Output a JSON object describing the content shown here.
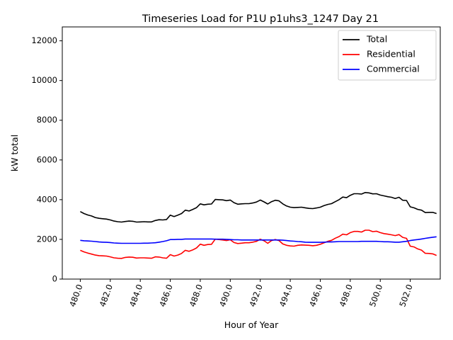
{
  "chart_data": {
    "type": "line",
    "title": "Timeseries Load for P1U p1uhs3_1247  Day 21",
    "xlabel": "Hour of Year",
    "ylabel": "kW total",
    "xlim": [
      478.8,
      504.0
    ],
    "ylim": [
      0,
      12700
    ],
    "grid": false,
    "legend_position": "top-right",
    "x_ticks": [
      480,
      482,
      484,
      486,
      488,
      490,
      492,
      494,
      496,
      498,
      500,
      502
    ],
    "x_tick_labels": [
      "480.0",
      "482.0",
      "484.0",
      "486.0",
      "488.0",
      "490.0",
      "492.0",
      "494.0",
      "496.0",
      "498.0",
      "500.0",
      "502.0"
    ],
    "y_ticks": [
      0,
      2000,
      4000,
      6000,
      8000,
      10000,
      12000
    ],
    "y_tick_labels": [
      "0",
      "2000",
      "4000",
      "6000",
      "8000",
      "10000",
      "12000"
    ],
    "x": [
      480.0,
      480.25,
      480.5,
      480.75,
      481.0,
      481.25,
      481.5,
      481.75,
      482.0,
      482.25,
      482.5,
      482.75,
      483.0,
      483.25,
      483.5,
      483.75,
      484.0,
      484.25,
      484.5,
      484.75,
      485.0,
      485.25,
      485.5,
      485.75,
      486.0,
      486.25,
      486.5,
      486.75,
      487.0,
      487.25,
      487.5,
      487.75,
      488.0,
      488.25,
      488.5,
      488.75,
      489.0,
      489.25,
      489.5,
      489.75,
      490.0,
      490.25,
      490.5,
      490.75,
      491.0,
      491.25,
      491.5,
      491.75,
      492.0,
      492.25,
      492.5,
      492.75,
      493.0,
      493.25,
      493.5,
      493.75,
      494.0,
      494.25,
      494.5,
      494.75,
      495.0,
      495.25,
      495.5,
      495.75,
      496.0,
      496.25,
      496.5,
      496.75,
      497.0,
      497.25,
      497.5,
      497.75,
      498.0,
      498.25,
      498.5,
      498.75,
      499.0,
      499.25,
      499.5,
      499.75,
      500.0,
      500.25,
      500.5,
      500.75,
      501.0,
      501.25,
      501.5,
      501.75,
      502.0,
      502.25,
      502.5,
      502.75,
      503.0,
      503.25,
      503.5,
      503.75
    ],
    "series": [
      {
        "name": "Total",
        "color": "#000000",
        "values": [
          3400,
          3300,
          3230,
          3180,
          3100,
          3060,
          3040,
          3020,
          2980,
          2920,
          2890,
          2870,
          2900,
          2920,
          2910,
          2870,
          2880,
          2890,
          2880,
          2880,
          2950,
          2990,
          2980,
          3000,
          3220,
          3150,
          3220,
          3300,
          3470,
          3430,
          3510,
          3600,
          3790,
          3740,
          3770,
          3780,
          4010,
          4000,
          3990,
          3950,
          3980,
          3850,
          3770,
          3790,
          3800,
          3800,
          3830,
          3880,
          3980,
          3890,
          3780,
          3900,
          3970,
          3940,
          3790,
          3680,
          3620,
          3600,
          3610,
          3620,
          3590,
          3560,
          3550,
          3580,
          3620,
          3700,
          3760,
          3800,
          3900,
          4000,
          4130,
          4100,
          4220,
          4300,
          4300,
          4280,
          4360,
          4340,
          4290,
          4300,
          4230,
          4190,
          4150,
          4120,
          4060,
          4120,
          3970,
          3960,
          3640,
          3590,
          3510,
          3470,
          3350,
          3360,
          3360,
          3300
        ]
      },
      {
        "name": "Residential",
        "color": "#ff0000",
        "values": [
          1450,
          1370,
          1310,
          1260,
          1210,
          1180,
          1170,
          1160,
          1120,
          1070,
          1050,
          1040,
          1090,
          1110,
          1100,
          1060,
          1070,
          1070,
          1060,
          1050,
          1120,
          1110,
          1070,
          1050,
          1230,
          1160,
          1210,
          1290,
          1450,
          1400,
          1470,
          1570,
          1760,
          1700,
          1740,
          1750,
          2010,
          1990,
          1970,
          1940,
          1980,
          1840,
          1790,
          1810,
          1830,
          1830,
          1860,
          1900,
          2010,
          1930,
          1800,
          1940,
          1990,
          1940,
          1770,
          1700,
          1670,
          1660,
          1700,
          1720,
          1710,
          1700,
          1680,
          1700,
          1750,
          1830,
          1900,
          1950,
          2060,
          2140,
          2260,
          2230,
          2340,
          2400,
          2400,
          2370,
          2460,
          2460,
          2390,
          2410,
          2340,
          2290,
          2260,
          2230,
          2190,
          2240,
          2100,
          2050,
          1660,
          1620,
          1520,
          1460,
          1300,
          1290,
          1270,
          1190
        ]
      },
      {
        "name": "Commercial",
        "color": "#0000ff",
        "values": [
          1950,
          1930,
          1920,
          1910,
          1890,
          1870,
          1860,
          1850,
          1840,
          1820,
          1810,
          1800,
          1800,
          1800,
          1800,
          1800,
          1800,
          1810,
          1810,
          1820,
          1830,
          1860,
          1890,
          1930,
          1990,
          1990,
          2000,
          2000,
          2020,
          2020,
          2020,
          2020,
          2020,
          2020,
          2020,
          2020,
          2010,
          2010,
          2010,
          2000,
          1990,
          1980,
          1980,
          1970,
          1970,
          1970,
          1970,
          1970,
          1970,
          1970,
          1970,
          1970,
          1970,
          1970,
          1960,
          1940,
          1920,
          1910,
          1890,
          1880,
          1860,
          1850,
          1850,
          1850,
          1850,
          1860,
          1870,
          1870,
          1880,
          1890,
          1890,
          1890,
          1890,
          1890,
          1890,
          1900,
          1900,
          1900,
          1900,
          1900,
          1890,
          1880,
          1880,
          1870,
          1860,
          1860,
          1880,
          1900,
          1940,
          1970,
          1990,
          2020,
          2050,
          2080,
          2110,
          2130
        ]
      }
    ]
  }
}
